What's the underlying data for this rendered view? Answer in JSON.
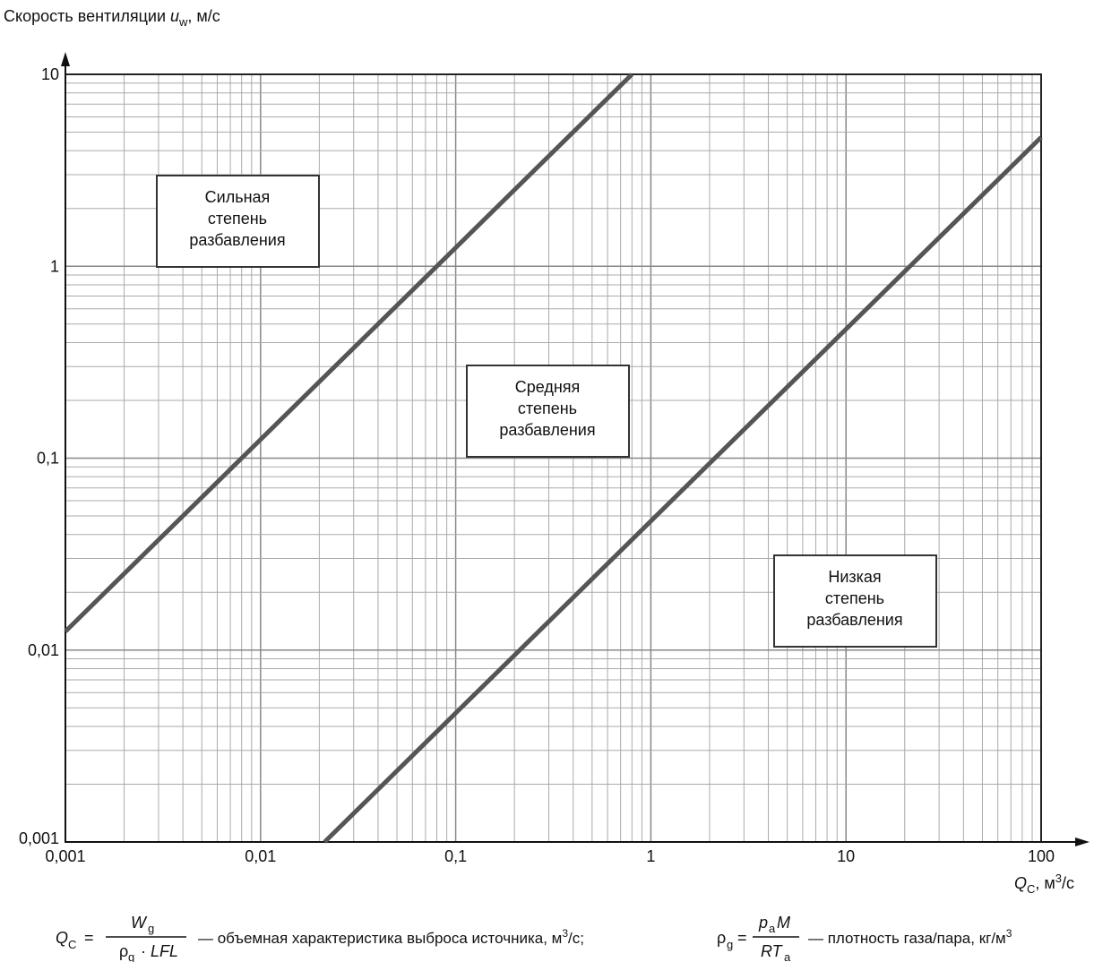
{
  "chart_data": {
    "type": "line",
    "ylabel": {
      "text": "Скорость вентиляции ",
      "var": "u",
      "sub": "w",
      "unit": ", м/с"
    },
    "xlabel": {
      "var": "Q",
      "sub": "C",
      "unit": ", м",
      "sup": "3",
      "unit_end": "/с"
    },
    "log_x": true,
    "log_y": true,
    "grid": true,
    "minor_grid": true,
    "xlim": [
      0.001,
      100
    ],
    "xticks": [
      {
        "value": 0.001,
        "label": "0,001"
      },
      {
        "value": 0.01,
        "label": "0,01"
      },
      {
        "value": 0.1,
        "label": "0,1"
      },
      1,
      10,
      100
    ],
    "ylim": [
      0.001,
      10
    ],
    "yticks": [
      {
        "value": 0.001,
        "label": "0,001"
      },
      {
        "value": 0.01,
        "label": "0,01"
      },
      {
        "value": 0.1,
        "label": "0,1"
      },
      1,
      10
    ],
    "series": [
      {
        "color": "#555555",
        "x": [
          0.001,
          0.8
        ],
        "values": [
          0.0125,
          10
        ]
      },
      {
        "color": "#555555",
        "x": [
          0.0213,
          100
        ],
        "values": [
          0.001,
          4.7
        ]
      }
    ],
    "annotations": [
      {
        "lines": [
          "Сильная",
          "степень",
          "разбавления"
        ]
      },
      {
        "lines": [
          "Средняя",
          "степень",
          "разбавления"
        ]
      },
      {
        "lines": [
          "Низкая",
          "степень",
          "разбавления"
        ]
      }
    ]
  },
  "formula": {
    "q": "Q",
    "q_sub": "C",
    "eq": "=",
    "num1": "W",
    "num1_sub": "g",
    "den1": "ρ",
    "den1_sub": "g",
    "den1_dot": "·",
    "den1_rest": "LFL",
    "desc1": "— объемная характеристика выброса источника, м",
    "desc1_sup": "3",
    "desc1_end": "/с;",
    "rho": "ρ",
    "rho_sub": "g",
    "eq2": "=",
    "num2": "p",
    "num2_sub": "a",
    "num2_rest": "M",
    "den2": "RT",
    "den2_sub": "a",
    "desc2": "— плотность газа/пара, кг/м",
    "desc2_sup": "3"
  }
}
